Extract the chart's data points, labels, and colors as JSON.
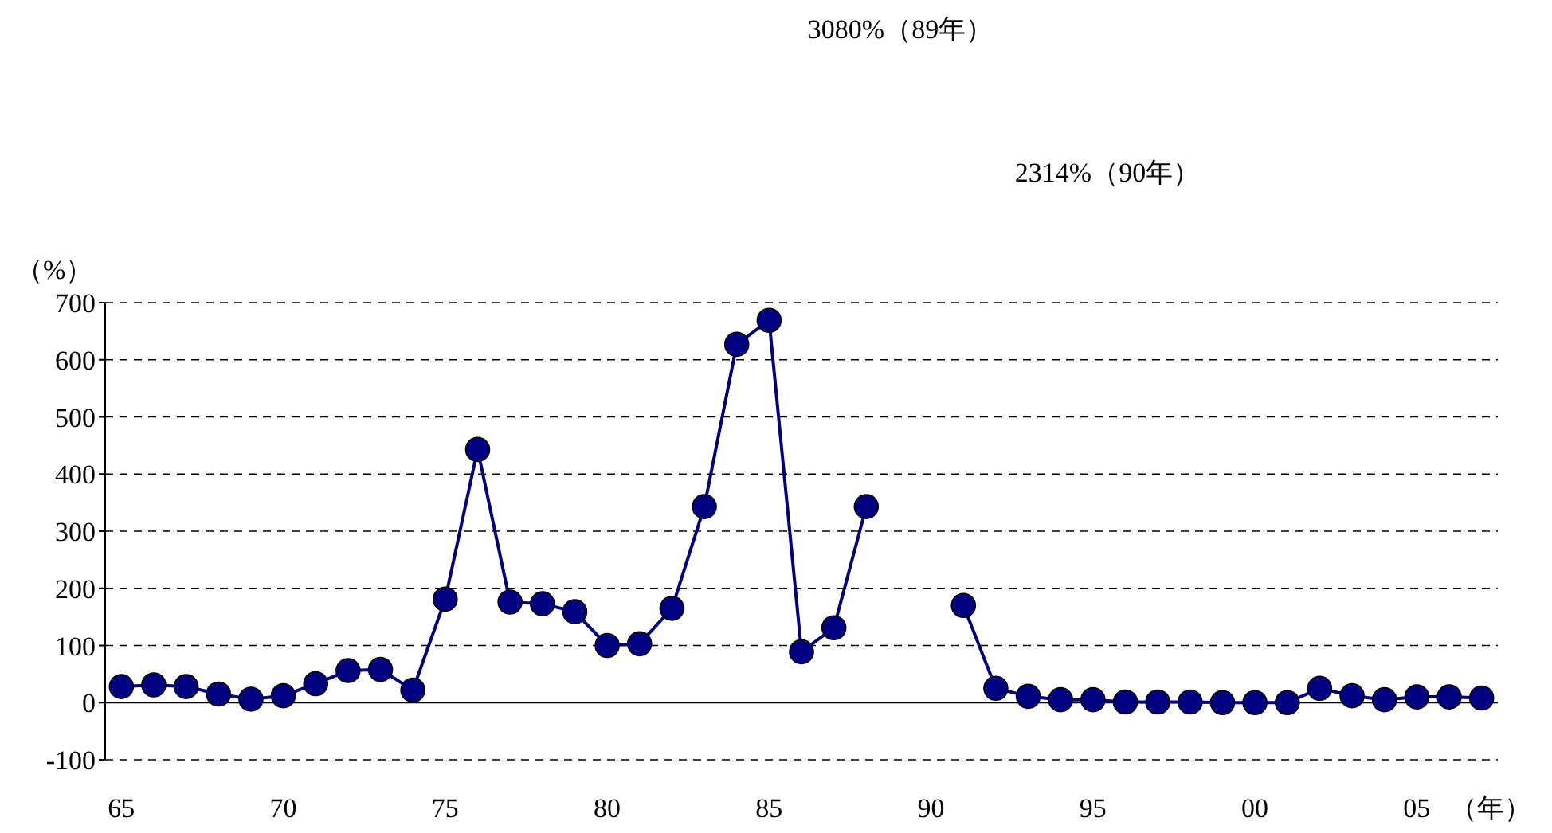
{
  "chart_data": {
    "type": "line",
    "xlabel": "（年）",
    "ylabel": "（%）",
    "x": [
      1965,
      1966,
      1967,
      1968,
      1969,
      1970,
      1971,
      1972,
      1973,
      1974,
      1975,
      1976,
      1977,
      1978,
      1979,
      1980,
      1981,
      1982,
      1983,
      1984,
      1985,
      1986,
      1987,
      1988,
      1991,
      1992,
      1993,
      1994,
      1995,
      1996,
      1997,
      1998,
      1999,
      2000,
      2001,
      2002,
      2003,
      2004,
      2005,
      2006,
      2007
    ],
    "series": [
      {
        "color": "#000080",
        "values": [
          28,
          31,
          28,
          15,
          6,
          12,
          33,
          56,
          58,
          22,
          181,
          443,
          176,
          173,
          159,
          100,
          103,
          165,
          343,
          627,
          669,
          89,
          131,
          343,
          170,
          25,
          11,
          5,
          5,
          1,
          1,
          1,
          0,
          0,
          0,
          25,
          12,
          5,
          10,
          10,
          8
        ]
      }
    ],
    "xlim": [
      1964.5,
      2007.5
    ],
    "ylim": [
      -100,
      700
    ],
    "xticks": [
      {
        "value": 1965,
        "label": "65"
      },
      {
        "value": 1970,
        "label": "70"
      },
      {
        "value": 1975,
        "label": "75"
      },
      {
        "value": 1980,
        "label": "80"
      },
      {
        "value": 1985,
        "label": "85"
      },
      {
        "value": 1990,
        "label": "90"
      },
      {
        "value": 1995,
        "label": "95"
      },
      {
        "value": 2000,
        "label": "00"
      },
      {
        "value": 2005,
        "label": "05"
      }
    ],
    "yticks": [
      -100,
      0,
      100,
      200,
      300,
      400,
      500,
      600,
      700
    ],
    "annotations": [
      "3080%（89年）",
      "2314%（90年）"
    ],
    "grid": "y",
    "marker": "circle",
    "line_style": "solid"
  }
}
